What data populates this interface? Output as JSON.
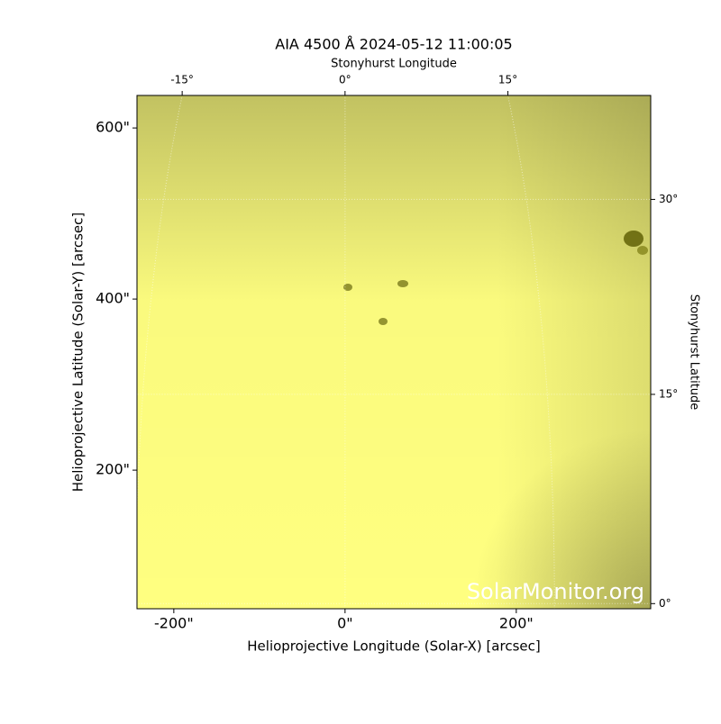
{
  "chart_data": {
    "type": "image",
    "title": "AIA 4500 Å 2024-05-12 11:00:05",
    "xlabel": "Helioprojective Longitude (Solar-X) [arcsec]",
    "ylabel": "Helioprojective Latitude (Solar-Y) [arcsec]",
    "xlim": [
      -243,
      357
    ],
    "ylim": [
      38,
      638
    ],
    "xticks": [
      {
        "value": -200,
        "label": "-200\""
      },
      {
        "value": 0,
        "label": "0\""
      },
      {
        "value": 200,
        "label": "200\""
      }
    ],
    "yticks": [
      {
        "value": 200,
        "label": "200\""
      },
      {
        "value": 400,
        "label": "400\""
      },
      {
        "value": 600,
        "label": "600\""
      }
    ],
    "x2label": "Stonyhurst Longitude",
    "x2ticks": [
      {
        "value": -15,
        "label": "-15°"
      },
      {
        "value": 0,
        "label": "0°"
      },
      {
        "value": 15,
        "label": "15°"
      }
    ],
    "y2label": "Stonyhurst Latitude",
    "y2ticks": [
      {
        "value": 0,
        "label": "0°"
      },
      {
        "value": 15,
        "label": "15°"
      },
      {
        "value": 30,
        "label": "30°"
      }
    ],
    "grid": true,
    "color": "#ffff80",
    "watermark": "SolarMonitor.org"
  }
}
